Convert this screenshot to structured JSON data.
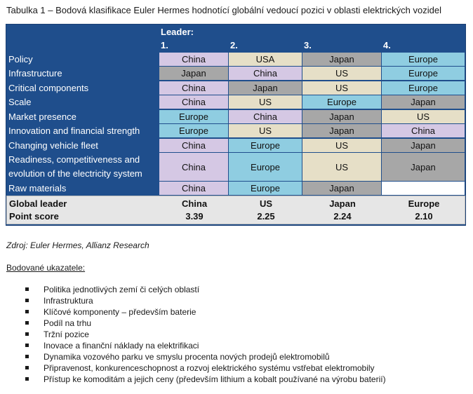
{
  "caption": "Tabulka 1 – Bodová klasifikace Euler Hermes hodnotící globální vedoucí pozici v oblasti elektrických vozidel",
  "table": {
    "leader_label": "Leader:",
    "ranks": [
      "1.",
      "2.",
      "3.",
      "4."
    ],
    "rows": [
      {
        "label": "Policy",
        "cells": [
          "China",
          "USA",
          "Japan",
          "Europe"
        ]
      },
      {
        "label": "Infrastructure",
        "cells": [
          "Japan",
          "China",
          "US",
          "Europe"
        ]
      },
      {
        "label": "Critical components",
        "cells": [
          "China",
          "Japan",
          "US",
          "Europe"
        ]
      },
      {
        "label": "Scale",
        "cells": [
          "China",
          "US",
          "Europe",
          "Japan"
        ]
      },
      {
        "label": "Market presence",
        "cells": [
          "Europe",
          "China",
          "Japan",
          "US"
        ]
      },
      {
        "label": "Innovation and financial strength",
        "cells": [
          "Europe",
          "US",
          "Japan",
          "China"
        ]
      },
      {
        "label": "Changing vehicle fleet",
        "cells": [
          "China",
          "Europe",
          "US",
          "Japan"
        ]
      },
      {
        "label": "Readiness, competitiveness and evolution of the electricity system",
        "cells": [
          "China",
          "Europe",
          "US",
          "Japan"
        ]
      },
      {
        "label": "Raw materials",
        "cells": [
          "China",
          "Europe",
          "Japan",
          ""
        ]
      }
    ],
    "summary": {
      "global_leader_label": "Global leader",
      "global_leader": [
        "China",
        "US",
        "Japan",
        "Europe"
      ],
      "point_score_label": "Point score",
      "point_score": [
        "3.39",
        "2.25",
        "2.24",
        "2.10"
      ]
    },
    "colors": {
      "China": "#d5c8e4",
      "US": "#e6dfc7",
      "USA": "#e6dfc7",
      "Japan": "#a7a7a7",
      "Europe": "#8fcde1",
      "empty": "#ffffff",
      "header_blue": "#1f4e8c"
    }
  },
  "source": "Zdroj: Euler Hermes, Allianz Research",
  "indicators": {
    "title": "Bodované ukazatele:",
    "items": [
      "Politika jednotlivých zemí či celých oblastí",
      "Infrastruktura",
      "Klíčové komponenty – především baterie",
      "Podíl na trhu",
      "Tržní pozice",
      "Inovace a finanční náklady na elektrifikaci",
      "Dynamika vozového parku ve smyslu procenta nových prodejů elektromobilů",
      "Připravenost, konkurenceschopnost a rozvoj elektrického systému vstřebat elektromobily",
      "Přístup ke komoditám a jejich ceny (především lithium a kobalt používané na výrobu baterií)"
    ]
  }
}
